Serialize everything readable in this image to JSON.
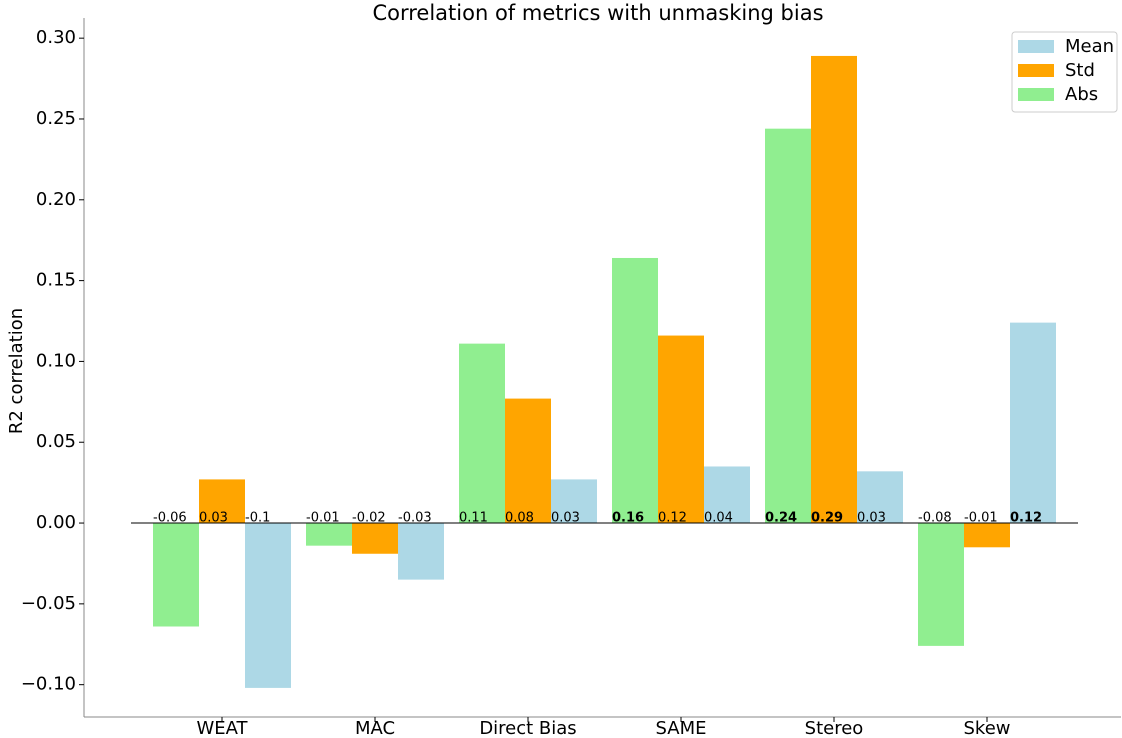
{
  "chart_data": {
    "type": "bar",
    "title": "Correlation of metrics with unmasking bias",
    "y_label": "R2 correlation",
    "categories": [
      "WEAT",
      "MAC",
      "Direct Bias",
      "SAME",
      "Stereo",
      "Skew"
    ],
    "series": [
      {
        "name": "Abs",
        "color": "#90ee90",
        "values": [
          -0.064,
          -0.014,
          0.111,
          0.164,
          0.244,
          -0.076
        ],
        "value_labels": [
          "-0.06",
          "-0.01",
          "0.11",
          "0.16",
          "0.24",
          "-0.08"
        ],
        "bold_labels": [
          false,
          false,
          false,
          true,
          true,
          false
        ]
      },
      {
        "name": "Std",
        "color": "#ffa500",
        "values": [
          0.027,
          -0.019,
          0.077,
          0.116,
          0.289,
          -0.015
        ],
        "value_labels": [
          "0.03",
          "-0.02",
          "0.08",
          "0.12",
          "0.29",
          "-0.01"
        ],
        "bold_labels": [
          false,
          false,
          false,
          false,
          true,
          false
        ]
      },
      {
        "name": "Mean",
        "color": "#add8e6",
        "values": [
          -0.102,
          -0.035,
          0.027,
          0.035,
          0.032,
          0.124
        ],
        "value_labels": [
          "-0.1",
          "-0.03",
          "0.03",
          "0.04",
          "0.03",
          "0.12"
        ],
        "bold_labels": [
          false,
          false,
          false,
          false,
          false,
          true
        ]
      }
    ],
    "legend_order": [
      2,
      1,
      0
    ],
    "legend": "upper right",
    "ylim": [
      -0.12,
      0.31
    ],
    "yticks": [
      {
        "value": -0.1,
        "label": "−0.10"
      },
      {
        "value": -0.05,
        "label": "−0.05"
      },
      {
        "value": 0,
        "label": "0.00"
      },
      {
        "value": 0.05,
        "label": "0.05"
      },
      {
        "value": 0.1,
        "label": "0.10"
      },
      {
        "value": 0.15,
        "label": "0.15"
      },
      {
        "value": 0.2,
        "label": "0.20"
      },
      {
        "value": 0.25,
        "label": "0.25"
      },
      {
        "value": 0.3,
        "label": "0.30"
      }
    ],
    "grid": false
  }
}
